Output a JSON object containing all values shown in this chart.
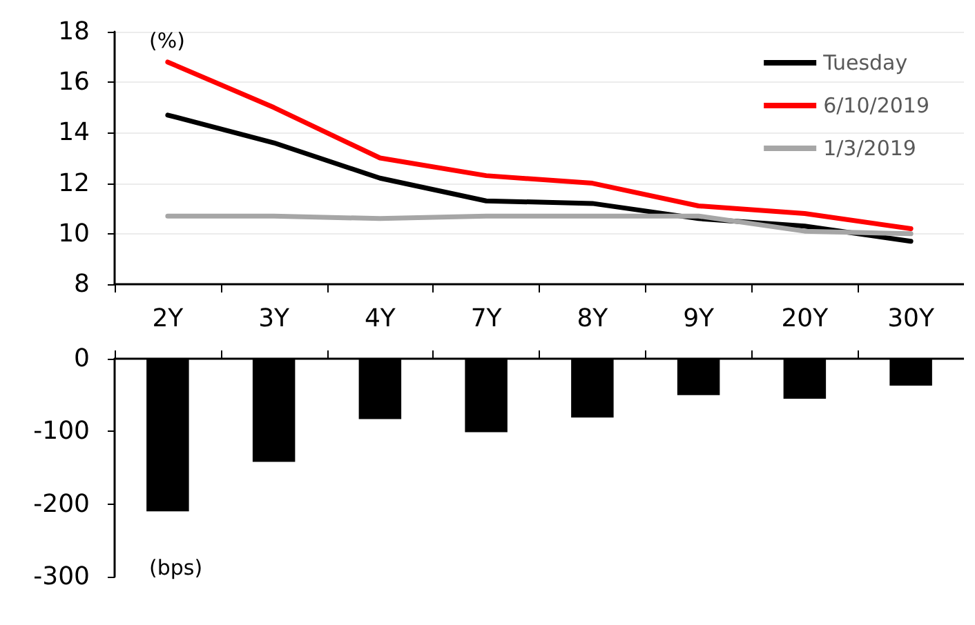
{
  "chart_data": [
    {
      "type": "line",
      "categories": [
        "2Y",
        "3Y",
        "4Y",
        "7Y",
        "8Y",
        "9Y",
        "20Y",
        "30Y"
      ],
      "ylabel": "(%)",
      "ylim": [
        8,
        18
      ],
      "yticks": [
        8,
        10,
        12,
        14,
        16,
        18
      ],
      "grid": "y",
      "legend": "top right",
      "marker": "none",
      "line_style": "solid",
      "series": [
        {
          "name": "Tuesday",
          "color": "#000000",
          "values": [
            14.7,
            13.6,
            12.2,
            11.3,
            11.2,
            10.6,
            10.3,
            9.7
          ]
        },
        {
          "name": "6/10/2019",
          "color": "#ff0000",
          "values": [
            16.8,
            15.0,
            13.0,
            12.3,
            12.0,
            11.1,
            10.8,
            10.2
          ]
        },
        {
          "name": "1/3/2019",
          "color": "#a6a6a6",
          "values": [
            10.7,
            10.7,
            10.6,
            10.7,
            10.7,
            10.7,
            10.1,
            10.0
          ]
        }
      ]
    },
    {
      "type": "bar",
      "categories": [
        null,
        null,
        null,
        null,
        null,
        null,
        null,
        null
      ],
      "ylabel": "(bps)",
      "ylim": [
        -300,
        0
      ],
      "yticks": [
        -300,
        -200,
        -100,
        0
      ],
      "tick_labels": "y",
      "color": "#000000",
      "values": [
        -210,
        -142,
        -83,
        -101,
        -81,
        -50,
        -55,
        -37
      ]
    }
  ]
}
